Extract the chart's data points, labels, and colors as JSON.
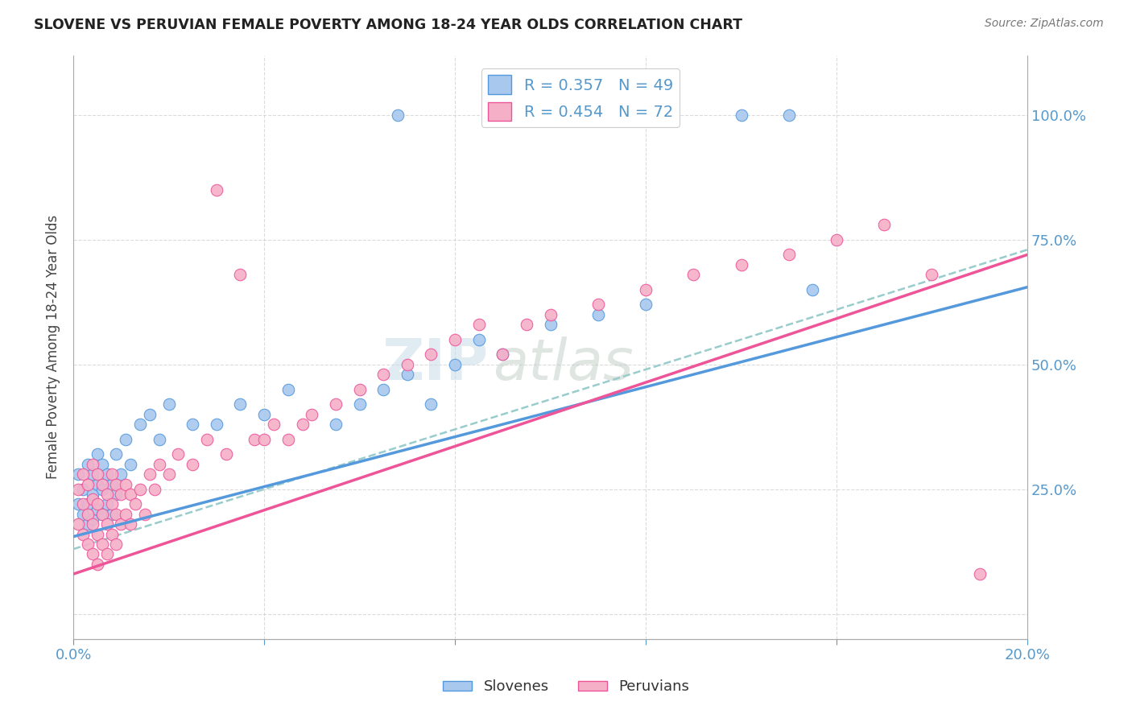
{
  "title": "SLOVENE VS PERUVIAN FEMALE POVERTY AMONG 18-24 YEAR OLDS CORRELATION CHART",
  "source": "Source: ZipAtlas.com",
  "ylabel": "Female Poverty Among 18-24 Year Olds",
  "xlim": [
    0.0,
    0.2
  ],
  "ylim": [
    -0.05,
    1.12
  ],
  "slovene_color": "#a8c8ee",
  "peruvian_color": "#f5b0c8",
  "slovene_line_color": "#5599dd",
  "peruvian_line_color": "#ee5599",
  "dashed_line_color": "#99cccc",
  "background_color": "#ffffff",
  "watermark_zip": "ZIP",
  "watermark_atlas": "atlas",
  "slovene_R": 0.357,
  "slovene_N": 49,
  "peruvian_R": 0.454,
  "peruvian_N": 72,
  "slovene_x": [
    0.001,
    0.001,
    0.002,
    0.002,
    0.003,
    0.003,
    0.003,
    0.004,
    0.004,
    0.004,
    0.005,
    0.005,
    0.005,
    0.006,
    0.006,
    0.006,
    0.007,
    0.007,
    0.008,
    0.008,
    0.009,
    0.009,
    0.01,
    0.011,
    0.012,
    0.014,
    0.016,
    0.018,
    0.02,
    0.025,
    0.03,
    0.035,
    0.04,
    0.045,
    0.055,
    0.06,
    0.065,
    0.068,
    0.07,
    0.075,
    0.08,
    0.085,
    0.09,
    0.1,
    0.11,
    0.12,
    0.14,
    0.15,
    0.155
  ],
  "slovene_y": [
    0.22,
    0.28,
    0.2,
    0.25,
    0.18,
    0.22,
    0.3,
    0.19,
    0.24,
    0.28,
    0.21,
    0.26,
    0.32,
    0.2,
    0.25,
    0.3,
    0.22,
    0.28,
    0.2,
    0.26,
    0.24,
    0.32,
    0.28,
    0.35,
    0.3,
    0.38,
    0.4,
    0.35,
    0.42,
    0.38,
    0.38,
    0.42,
    0.4,
    0.45,
    0.38,
    0.42,
    0.45,
    1.0,
    0.48,
    0.42,
    0.5,
    0.55,
    0.52,
    0.58,
    0.6,
    0.62,
    1.0,
    1.0,
    0.65
  ],
  "peruvian_x": [
    0.001,
    0.001,
    0.002,
    0.002,
    0.002,
    0.003,
    0.003,
    0.003,
    0.004,
    0.004,
    0.004,
    0.004,
    0.005,
    0.005,
    0.005,
    0.005,
    0.006,
    0.006,
    0.006,
    0.007,
    0.007,
    0.007,
    0.008,
    0.008,
    0.008,
    0.009,
    0.009,
    0.009,
    0.01,
    0.01,
    0.011,
    0.011,
    0.012,
    0.012,
    0.013,
    0.014,
    0.015,
    0.016,
    0.017,
    0.018,
    0.02,
    0.022,
    0.025,
    0.028,
    0.03,
    0.032,
    0.035,
    0.038,
    0.04,
    0.042,
    0.045,
    0.048,
    0.05,
    0.055,
    0.06,
    0.065,
    0.07,
    0.075,
    0.08,
    0.085,
    0.09,
    0.095,
    0.1,
    0.11,
    0.12,
    0.13,
    0.14,
    0.15,
    0.16,
    0.17,
    0.18,
    0.19
  ],
  "peruvian_y": [
    0.18,
    0.25,
    0.16,
    0.22,
    0.28,
    0.14,
    0.2,
    0.26,
    0.12,
    0.18,
    0.23,
    0.3,
    0.1,
    0.16,
    0.22,
    0.28,
    0.14,
    0.2,
    0.26,
    0.12,
    0.18,
    0.24,
    0.16,
    0.22,
    0.28,
    0.14,
    0.2,
    0.26,
    0.18,
    0.24,
    0.2,
    0.26,
    0.18,
    0.24,
    0.22,
    0.25,
    0.2,
    0.28,
    0.25,
    0.3,
    0.28,
    0.32,
    0.3,
    0.35,
    0.85,
    0.32,
    0.68,
    0.35,
    0.35,
    0.38,
    0.35,
    0.38,
    0.4,
    0.42,
    0.45,
    0.48,
    0.5,
    0.52,
    0.55,
    0.58,
    0.52,
    0.58,
    0.6,
    0.62,
    0.65,
    0.68,
    0.7,
    0.72,
    0.75,
    0.78,
    0.68,
    0.08
  ],
  "slov_line_x": [
    0.0,
    0.2
  ],
  "slov_line_y": [
    0.155,
    0.655
  ],
  "peru_line_x": [
    0.0,
    0.2
  ],
  "peru_line_y": [
    0.08,
    0.72
  ],
  "dash_line_x": [
    0.0,
    0.2
  ],
  "dash_line_y": [
    0.13,
    0.73
  ]
}
